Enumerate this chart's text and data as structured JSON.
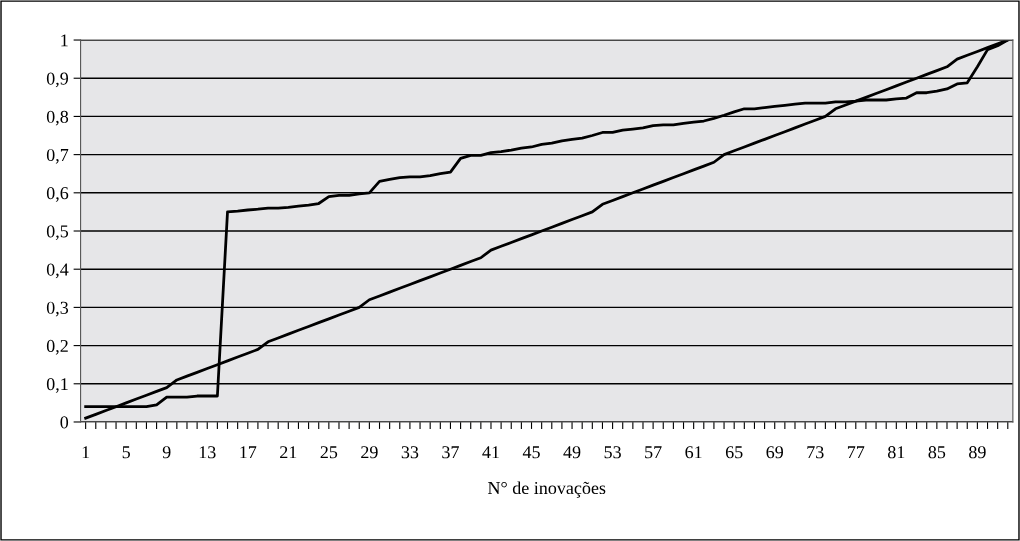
{
  "chart_data": {
    "type": "line",
    "xlabel": "N° de inovações",
    "categories": [
      "1",
      null,
      null,
      null,
      "5",
      null,
      null,
      null,
      "9",
      null,
      null,
      null,
      "13",
      null,
      null,
      null,
      "17",
      null,
      null,
      null,
      "21",
      null,
      null,
      null,
      "25",
      null,
      null,
      null,
      "29",
      null,
      null,
      null,
      "33",
      null,
      null,
      null,
      "37",
      null,
      null,
      null,
      "41",
      null,
      null,
      null,
      "45",
      null,
      null,
      null,
      "49",
      null,
      null,
      null,
      "53",
      null,
      null,
      null,
      "57",
      null,
      null,
      null,
      "61",
      null,
      null,
      null,
      "65",
      null,
      null,
      null,
      "69",
      null,
      null,
      null,
      "73",
      null,
      null,
      null,
      "77",
      null,
      null,
      null,
      "81",
      null,
      null,
      null,
      "85",
      null,
      null,
      null,
      "89",
      null,
      null,
      null
    ],
    "series": [
      {
        "color": "#000000",
        "values": [
          0.01,
          0.02,
          0.03,
          0.04,
          0.05,
          0.06,
          0.07,
          0.08,
          0.09,
          0.11,
          0.12,
          0.13,
          0.14,
          0.15,
          0.16,
          0.17,
          0.18,
          0.19,
          0.21,
          0.22,
          0.23,
          0.24,
          0.25,
          0.26,
          0.27,
          0.28,
          0.29,
          0.3,
          0.32,
          0.33,
          0.34,
          0.35,
          0.36,
          0.37,
          0.38,
          0.39,
          0.4,
          0.41,
          0.42,
          0.43,
          0.45,
          0.46,
          0.47,
          0.48,
          0.49,
          0.5,
          0.51,
          0.52,
          0.53,
          0.54,
          0.55,
          0.57,
          0.58,
          0.59,
          0.6,
          0.61,
          0.62,
          0.63,
          0.64,
          0.65,
          0.66,
          0.67,
          0.68,
          0.7,
          0.71,
          0.72,
          0.73,
          0.74,
          0.75,
          0.76,
          0.77,
          0.78,
          0.79,
          0.8,
          0.82,
          0.83,
          0.84,
          0.85,
          0.86,
          0.87,
          0.88,
          0.89,
          0.9,
          0.91,
          0.92,
          0.93,
          0.95,
          0.96,
          0.97,
          0.98,
          0.99,
          1.0
        ]
      },
      {
        "color": "#000000",
        "values": [
          0.04,
          0.04,
          0.04,
          0.04,
          0.04,
          0.04,
          0.04,
          0.045,
          0.065,
          0.065,
          0.065,
          0.068,
          0.068,
          0.068,
          0.55,
          0.552,
          0.555,
          0.557,
          0.56,
          0.56,
          0.562,
          0.565,
          0.568,
          0.572,
          0.59,
          0.593,
          0.593,
          0.597,
          0.6,
          0.63,
          0.635,
          0.64,
          0.642,
          0.642,
          0.645,
          0.65,
          0.654,
          0.69,
          0.698,
          0.698,
          0.705,
          0.708,
          0.712,
          0.717,
          0.72,
          0.727,
          0.73,
          0.736,
          0.74,
          0.743,
          0.75,
          0.758,
          0.758,
          0.764,
          0.767,
          0.77,
          0.776,
          0.778,
          0.778,
          0.782,
          0.785,
          0.788,
          0.795,
          0.803,
          0.812,
          0.82,
          0.82,
          0.823,
          0.826,
          0.829,
          0.832,
          0.835,
          0.835,
          0.835,
          0.838,
          0.838,
          0.84,
          0.843,
          0.843,
          0.843,
          0.846,
          0.848,
          0.862,
          0.862,
          0.866,
          0.872,
          0.885,
          0.888,
          0.93,
          0.975,
          0.985,
          1.0
        ]
      }
    ],
    "ylim": [
      0,
      1
    ],
    "yticks": [
      0,
      {
        "value": 0.1,
        "label": "0,1"
      },
      {
        "value": 0.2,
        "label": "0,2"
      },
      {
        "value": 0.3,
        "label": "0,3"
      },
      {
        "value": 0.4,
        "label": "0,4"
      },
      {
        "value": 0.5,
        "label": "0,5"
      },
      {
        "value": 0.6,
        "label": "0,6"
      },
      {
        "value": 0.7,
        "label": "0,7"
      },
      {
        "value": 0.8,
        "label": "0,8"
      },
      {
        "value": 0.9,
        "label": "0,9"
      },
      1
    ],
    "grid": "y",
    "marker": "none",
    "line_style": "solid",
    "legend": false
  }
}
